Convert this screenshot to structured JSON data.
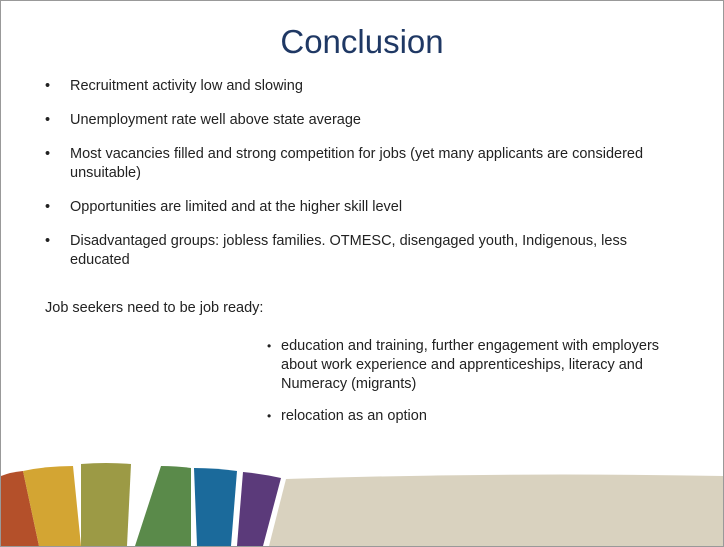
{
  "header": {
    "title": "Conclusion"
  },
  "bullets": [
    "Recruitment activity low and slowing",
    "Unemployment rate well above state average",
    "Most vacancies filled and strong competition for jobs (yet many applicants are considered unsuitable)",
    "Opportunities are limited and at the higher skill level",
    "Disadvantaged groups: jobless families. OTMESC, disengaged youth, Indigenous, less educated"
  ],
  "lead": "Job seekers need to be job ready:",
  "sub_bullets": [
    "education and training, further engagement with employers  about work experience and apprenticeships, literacy and Numeracy (migrants)",
    "relocation as an option"
  ]
}
